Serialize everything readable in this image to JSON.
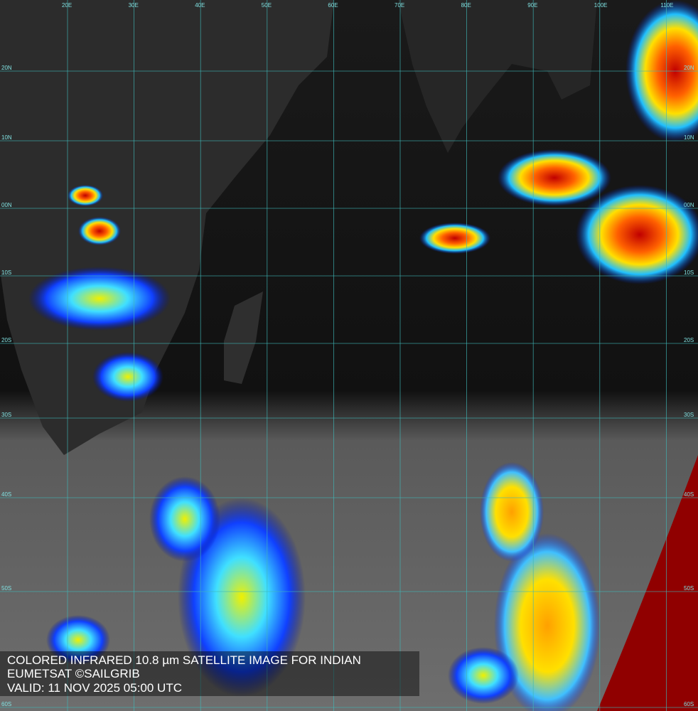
{
  "map": {
    "longitude_labels": [
      "20E",
      "30E",
      "40E",
      "50E",
      "60E",
      "70E",
      "80E",
      "90E",
      "100E",
      "110E"
    ],
    "latitude_labels": [
      "20N",
      "10N",
      "00N",
      "10S",
      "20S",
      "30S",
      "40S",
      "50S",
      "60S"
    ],
    "caption": [
      "COLORED INFRARED 10.8 µm SATELLITE IMAGE FOR INDIAN",
      "EUMETSAT ©SAILGRIB",
      "VALID:  11 NOV 2025 05:00 UTC"
    ]
  }
}
